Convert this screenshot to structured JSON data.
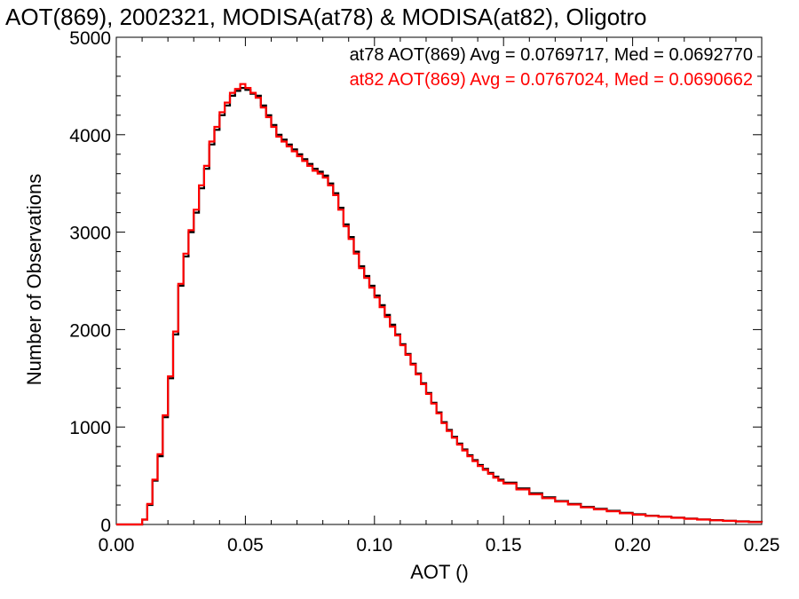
{
  "chart_data": {
    "type": "line",
    "title": "AOT(869), 2002321, MODISA(at78) & MODISA(at82), Oligotro",
    "xlabel": "AOT ()",
    "ylabel": "Number of Observations",
    "xlim": [
      0.0,
      0.25
    ],
    "ylim": [
      0,
      5000
    ],
    "xticks": [
      0.0,
      0.05,
      0.1,
      0.15,
      0.2,
      0.25
    ],
    "xtick_labels": [
      "0.00",
      "0.05",
      "0.10",
      "0.15",
      "0.20",
      "0.25"
    ],
    "yticks": [
      0,
      1000,
      2000,
      3000,
      4000,
      5000
    ],
    "ytick_labels": [
      "0",
      "1000",
      "2000",
      "3000",
      "4000",
      "5000"
    ],
    "grid": false,
    "step": true,
    "series": [
      {
        "name": "at78",
        "color": "#000000",
        "annotation": "at78 AOT(869) Avg = 0.0769717, Med = 0.0692770",
        "points": [
          [
            0.0,
            0
          ],
          [
            0.008,
            0
          ],
          [
            0.01,
            50
          ],
          [
            0.012,
            200
          ],
          [
            0.014,
            450
          ],
          [
            0.016,
            700
          ],
          [
            0.018,
            1100
          ],
          [
            0.02,
            1500
          ],
          [
            0.022,
            1950
          ],
          [
            0.024,
            2450
          ],
          [
            0.026,
            2750
          ],
          [
            0.028,
            3000
          ],
          [
            0.03,
            3200
          ],
          [
            0.032,
            3450
          ],
          [
            0.034,
            3650
          ],
          [
            0.036,
            3900
          ],
          [
            0.038,
            4050
          ],
          [
            0.04,
            4200
          ],
          [
            0.042,
            4300
          ],
          [
            0.044,
            4400
          ],
          [
            0.046,
            4450
          ],
          [
            0.048,
            4480
          ],
          [
            0.05,
            4460
          ],
          [
            0.052,
            4420
          ],
          [
            0.054,
            4400
          ],
          [
            0.056,
            4300
          ],
          [
            0.058,
            4200
          ],
          [
            0.06,
            4100
          ],
          [
            0.062,
            4000
          ],
          [
            0.064,
            3950
          ],
          [
            0.066,
            3900
          ],
          [
            0.068,
            3850
          ],
          [
            0.07,
            3800
          ],
          [
            0.072,
            3750
          ],
          [
            0.074,
            3700
          ],
          [
            0.076,
            3650
          ],
          [
            0.078,
            3620
          ],
          [
            0.08,
            3580
          ],
          [
            0.082,
            3500
          ],
          [
            0.084,
            3400
          ],
          [
            0.086,
            3250
          ],
          [
            0.088,
            3080
          ],
          [
            0.09,
            2950
          ],
          [
            0.092,
            2800
          ],
          [
            0.094,
            2650
          ],
          [
            0.096,
            2550
          ],
          [
            0.098,
            2450
          ],
          [
            0.1,
            2350
          ],
          [
            0.102,
            2250
          ],
          [
            0.104,
            2150
          ],
          [
            0.106,
            2050
          ],
          [
            0.108,
            1950
          ],
          [
            0.11,
            1850
          ],
          [
            0.112,
            1750
          ],
          [
            0.114,
            1650
          ],
          [
            0.116,
            1550
          ],
          [
            0.118,
            1450
          ],
          [
            0.12,
            1350
          ],
          [
            0.122,
            1250
          ],
          [
            0.124,
            1150
          ],
          [
            0.126,
            1050
          ],
          [
            0.128,
            970
          ],
          [
            0.13,
            900
          ],
          [
            0.132,
            830
          ],
          [
            0.134,
            770
          ],
          [
            0.136,
            710
          ],
          [
            0.138,
            660
          ],
          [
            0.14,
            610
          ],
          [
            0.142,
            570
          ],
          [
            0.144,
            530
          ],
          [
            0.146,
            490
          ],
          [
            0.148,
            460
          ],
          [
            0.15,
            430
          ],
          [
            0.155,
            370
          ],
          [
            0.16,
            320
          ],
          [
            0.165,
            280
          ],
          [
            0.17,
            240
          ],
          [
            0.175,
            210
          ],
          [
            0.18,
            180
          ],
          [
            0.185,
            160
          ],
          [
            0.19,
            140
          ],
          [
            0.195,
            120
          ],
          [
            0.2,
            105
          ],
          [
            0.205,
            90
          ],
          [
            0.21,
            80
          ],
          [
            0.215,
            70
          ],
          [
            0.22,
            60
          ],
          [
            0.225,
            52
          ],
          [
            0.23,
            45
          ],
          [
            0.235,
            38
          ],
          [
            0.24,
            32
          ],
          [
            0.245,
            27
          ],
          [
            0.25,
            22
          ]
        ]
      },
      {
        "name": "at82",
        "color": "#ff0000",
        "annotation": "at82 AOT(869) Avg = 0.0767024, Med = 0.0690662",
        "points": [
          [
            0.0,
            0
          ],
          [
            0.008,
            0
          ],
          [
            0.01,
            50
          ],
          [
            0.012,
            210
          ],
          [
            0.014,
            460
          ],
          [
            0.016,
            720
          ],
          [
            0.018,
            1120
          ],
          [
            0.02,
            1520
          ],
          [
            0.022,
            1980
          ],
          [
            0.024,
            2470
          ],
          [
            0.026,
            2780
          ],
          [
            0.028,
            3020
          ],
          [
            0.03,
            3230
          ],
          [
            0.032,
            3480
          ],
          [
            0.034,
            3680
          ],
          [
            0.036,
            3930
          ],
          [
            0.038,
            4080
          ],
          [
            0.04,
            4230
          ],
          [
            0.042,
            4330
          ],
          [
            0.044,
            4430
          ],
          [
            0.046,
            4470
          ],
          [
            0.048,
            4520
          ],
          [
            0.05,
            4480
          ],
          [
            0.052,
            4430
          ],
          [
            0.054,
            4380
          ],
          [
            0.056,
            4280
          ],
          [
            0.058,
            4180
          ],
          [
            0.06,
            4080
          ],
          [
            0.062,
            3980
          ],
          [
            0.064,
            3930
          ],
          [
            0.066,
            3880
          ],
          [
            0.068,
            3830
          ],
          [
            0.07,
            3780
          ],
          [
            0.072,
            3730
          ],
          [
            0.074,
            3680
          ],
          [
            0.076,
            3630
          ],
          [
            0.078,
            3600
          ],
          [
            0.08,
            3560
          ],
          [
            0.082,
            3480
          ],
          [
            0.084,
            3380
          ],
          [
            0.086,
            3230
          ],
          [
            0.088,
            3060
          ],
          [
            0.09,
            2930
          ],
          [
            0.092,
            2780
          ],
          [
            0.094,
            2630
          ],
          [
            0.096,
            2530
          ],
          [
            0.098,
            2430
          ],
          [
            0.1,
            2330
          ],
          [
            0.102,
            2230
          ],
          [
            0.104,
            2130
          ],
          [
            0.106,
            2030
          ],
          [
            0.108,
            1940
          ],
          [
            0.11,
            1840
          ],
          [
            0.112,
            1740
          ],
          [
            0.114,
            1640
          ],
          [
            0.116,
            1540
          ],
          [
            0.118,
            1440
          ],
          [
            0.12,
            1340
          ],
          [
            0.122,
            1240
          ],
          [
            0.124,
            1140
          ],
          [
            0.126,
            1040
          ],
          [
            0.128,
            960
          ],
          [
            0.13,
            890
          ],
          [
            0.132,
            820
          ],
          [
            0.134,
            760
          ],
          [
            0.136,
            700
          ],
          [
            0.138,
            650
          ],
          [
            0.14,
            600
          ],
          [
            0.142,
            560
          ],
          [
            0.144,
            520
          ],
          [
            0.146,
            480
          ],
          [
            0.148,
            450
          ],
          [
            0.15,
            420
          ],
          [
            0.155,
            360
          ],
          [
            0.16,
            310
          ],
          [
            0.165,
            270
          ],
          [
            0.17,
            235
          ],
          [
            0.175,
            205
          ],
          [
            0.18,
            175
          ],
          [
            0.185,
            155
          ],
          [
            0.19,
            135
          ],
          [
            0.195,
            115
          ],
          [
            0.2,
            100
          ],
          [
            0.205,
            88
          ],
          [
            0.21,
            78
          ],
          [
            0.215,
            68
          ],
          [
            0.22,
            58
          ],
          [
            0.225,
            50
          ],
          [
            0.23,
            43
          ],
          [
            0.235,
            36
          ],
          [
            0.24,
            30
          ],
          [
            0.245,
            25
          ],
          [
            0.25,
            20
          ]
        ]
      }
    ]
  }
}
